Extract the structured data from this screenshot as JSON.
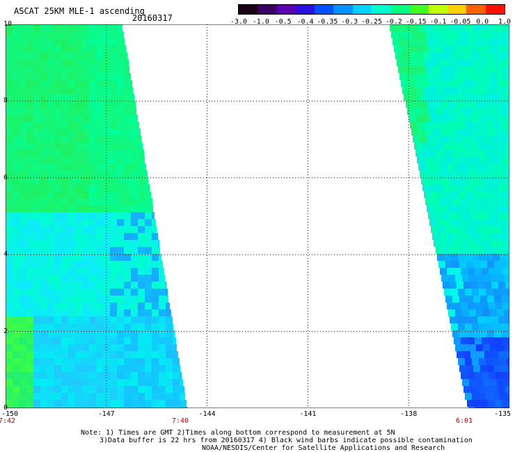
{
  "header": {
    "title": "ASCAT 25KM MLE-1 ascending",
    "date": "20160317"
  },
  "colorbar": {
    "labels": [
      "-3.0",
      "-1.0",
      "-0.5",
      "-0.4",
      "-0.35",
      "-0.3",
      "-0.25",
      "-0.2",
      "-0.15",
      "-0.1",
      "-0.05",
      "0.0",
      "1.0"
    ],
    "colors": [
      "#1a0012",
      "#3a0060",
      "#5a00b0",
      "#2a10e0",
      "#0050ff",
      "#0090ff",
      "#00d0ff",
      "#00ffd0",
      "#00ff80",
      "#40ff20",
      "#c0ff00",
      "#ffd000",
      "#ff6000",
      "#ff1000"
    ]
  },
  "axes": {
    "y_ticks": [
      "10",
      "8",
      "6",
      "4",
      "2",
      "0"
    ],
    "x_ticks": [
      "-150",
      "-147",
      "-144",
      "-141",
      "-138",
      "-135"
    ]
  },
  "times": {
    "left_start": "7:42",
    "left_end": "7:40",
    "right": "6:01"
  },
  "notes": {
    "line1": "Note: 1) Times are GMT 2)Times along bottom correspond to measurement at 5N",
    "line2": "3)Data buffer is 22 hrs from 20160317 4) Black wind barbs indicate possible contamination",
    "line3": "NOAA/NESDIS/Center for Satellite Applications and Research"
  }
}
